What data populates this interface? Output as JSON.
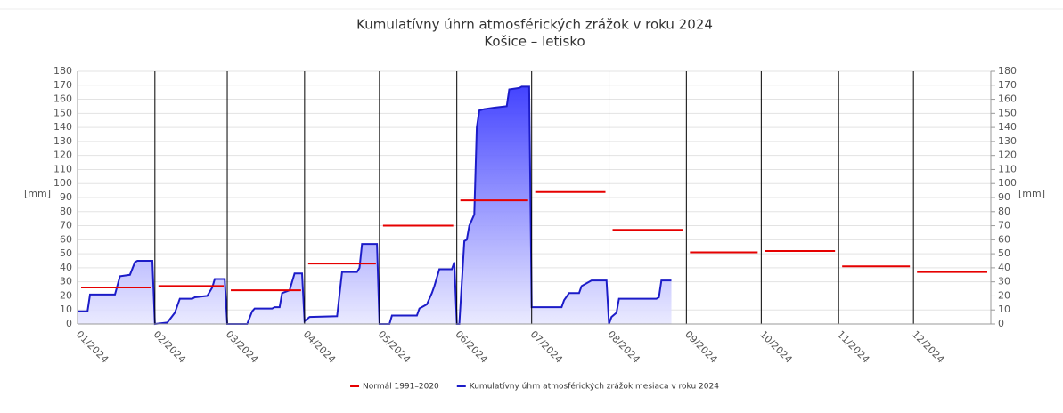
{
  "chart_data": {
    "type": "area",
    "title": "Kumulatívny úhrn atmosférických zrážok v roku 2024",
    "subtitle": "Košice – letisko",
    "y_label": "[mm]",
    "y2_label": "[mm]",
    "xlim": [
      1,
      367
    ],
    "xticks": [
      {
        "value": 1,
        "label": "01/2024"
      },
      {
        "value": 32,
        "label": "02/2024"
      },
      {
        "value": 61,
        "label": "03/2024"
      },
      {
        "value": 92,
        "label": "04/2024"
      },
      {
        "value": 122,
        "label": "05/2024"
      },
      {
        "value": 153,
        "label": "06/2024"
      },
      {
        "value": 183,
        "label": "07/2024"
      },
      {
        "value": 214,
        "label": "08/2024"
      },
      {
        "value": 245,
        "label": "09/2024"
      },
      {
        "value": 275,
        "label": "10/2024"
      },
      {
        "value": 306,
        "label": "11/2024"
      },
      {
        "value": 336,
        "label": "12/2024"
      }
    ],
    "ylim": [
      0,
      180
    ],
    "yticks": [
      0,
      10,
      20,
      30,
      40,
      50,
      60,
      70,
      80,
      90,
      100,
      110,
      120,
      130,
      140,
      150,
      160,
      170,
      180
    ],
    "y2lim": [
      0,
      180
    ],
    "y2ticks": [
      0,
      10,
      20,
      30,
      40,
      50,
      60,
      70,
      80,
      90,
      100,
      110,
      120,
      130,
      140,
      150,
      160,
      170,
      180
    ],
    "grid": true,
    "legend": "bottom",
    "series": [
      {
        "name": "Normál 1991–2020",
        "color": "#e60000",
        "values": [
          26,
          27,
          24,
          43,
          70,
          88,
          94,
          67,
          51,
          52,
          41,
          37
        ]
      },
      {
        "name": "Kumulatívny úhrn atmosférických zrážok mesiaca v roku 2024",
        "color": "#1c1cc8",
        "x": [
          1,
          5,
          6,
          16,
          18,
          22,
          24,
          25,
          31,
          32,
          37,
          40,
          42,
          47,
          48,
          53,
          55,
          56,
          60,
          61,
          69,
          71,
          72,
          79,
          80,
          82,
          83,
          86,
          88,
          91,
          92,
          94,
          105,
          107,
          113,
          114,
          115,
          121,
          122,
          126,
          127,
          137,
          138,
          140,
          141,
          143,
          144,
          146,
          151,
          152,
          153,
          154,
          156,
          157,
          158,
          160,
          161,
          162,
          164,
          168,
          173,
          174,
          178,
          179,
          182,
          183,
          195,
          196,
          198,
          202,
          203,
          205,
          207,
          213,
          214,
          215,
          217,
          218,
          233,
          234,
          235,
          239
        ],
        "values": [
          9,
          9,
          21,
          21,
          34,
          35,
          44,
          45,
          45,
          0,
          1,
          8,
          18,
          18,
          19,
          20,
          26,
          32,
          32,
          0,
          0,
          9,
          11,
          11,
          12,
          12,
          22,
          24,
          36,
          36,
          2,
          5,
          5.5,
          37,
          37,
          40,
          57,
          57,
          0,
          0,
          6,
          6,
          11,
          13,
          14,
          22,
          27,
          39,
          39,
          44,
          0,
          0,
          59,
          60,
          70,
          78,
          140,
          152,
          153,
          154,
          155,
          167,
          168,
          169,
          169,
          12,
          12,
          17,
          22,
          22,
          27,
          29,
          31,
          31,
          0,
          5,
          8,
          18,
          18,
          19,
          31,
          31
        ]
      }
    ]
  }
}
